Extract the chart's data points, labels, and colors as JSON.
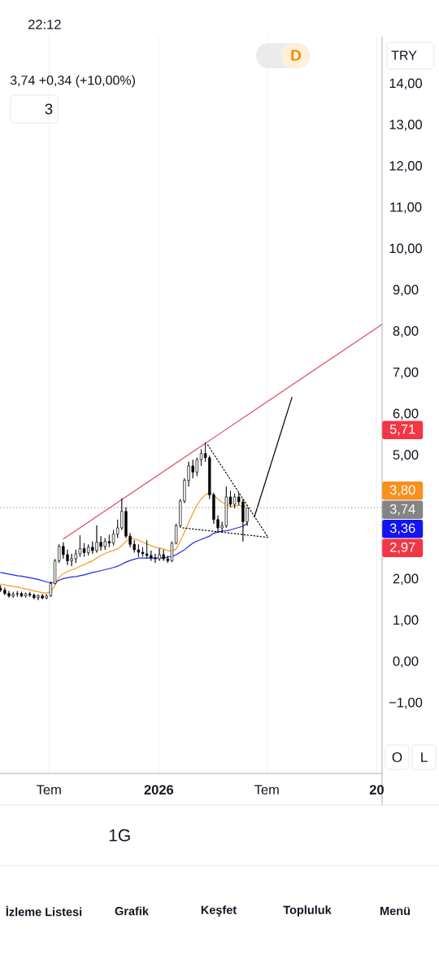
{
  "chart_data": {
    "type": "candlestick",
    "ylabel": "TRY",
    "color": "#000000",
    "x": [
      "2025-04-11",
      "2025-04-18",
      "2025-04-25",
      "2025-05-02",
      "2025-05-09",
      "2025-05-16",
      "2025-05-23",
      "2025-05-30",
      "2025-06-06",
      "2025-06-13",
      "2025-06-20",
      "2025-06-27",
      "2025-07-04",
      "2025-07-11",
      "2025-07-18",
      "2025-07-25",
      "2025-08-01",
      "2025-08-08",
      "2025-08-15",
      "2025-08-22",
      "2025-08-29",
      "2025-09-05",
      "2025-09-12",
      "2025-09-19",
      "2025-09-26",
      "2025-10-03",
      "2025-10-10",
      "2025-10-17",
      "2025-10-24",
      "2025-10-31",
      "2025-11-07",
      "2025-11-14",
      "2025-11-21",
      "2025-11-28",
      "2025-12-05",
      "2025-12-12",
      "2025-12-19",
      "2025-12-26",
      "2026-01-02",
      "2026-01-09",
      "2026-01-16",
      "2026-01-23",
      "2026-01-30",
      "2026-02-06",
      "2026-02-13",
      "2026-02-20",
      "2026-02-27",
      "2026-03-06",
      "2026-03-13",
      "2026-03-20",
      "2026-03-27",
      "2026-04-03",
      "2026-04-10",
      "2026-04-17",
      "2026-04-24",
      "2026-05-01",
      "2026-05-08",
      "2026-05-15",
      "2026-05-22",
      "2026-05-29"
    ],
    "ohlc": [
      [
        1.78,
        1.86,
        1.7,
        1.74
      ],
      [
        1.74,
        1.8,
        1.62,
        1.66
      ],
      [
        1.66,
        1.72,
        1.56,
        1.6
      ],
      [
        1.6,
        1.7,
        1.56,
        1.64
      ],
      [
        1.64,
        1.72,
        1.58,
        1.66
      ],
      [
        1.66,
        1.7,
        1.57,
        1.6
      ],
      [
        1.6,
        1.68,
        1.56,
        1.65
      ],
      [
        1.65,
        1.7,
        1.58,
        1.62
      ],
      [
        1.62,
        1.66,
        1.52,
        1.56
      ],
      [
        1.56,
        1.64,
        1.5,
        1.6
      ],
      [
        1.6,
        1.65,
        1.52,
        1.55
      ],
      [
        1.55,
        1.64,
        1.52,
        1.6
      ],
      [
        1.6,
        1.95,
        1.58,
        1.9
      ],
      [
        1.9,
        2.5,
        1.88,
        2.45
      ],
      [
        2.45,
        2.85,
        2.4,
        2.8
      ],
      [
        2.8,
        2.9,
        2.5,
        2.6
      ],
      [
        2.6,
        2.72,
        2.35,
        2.45
      ],
      [
        2.45,
        2.62,
        2.32,
        2.5
      ],
      [
        2.5,
        2.72,
        2.4,
        2.62
      ],
      [
        2.62,
        3.07,
        2.55,
        2.75
      ],
      [
        2.75,
        2.88,
        2.55,
        2.65
      ],
      [
        2.65,
        2.85,
        2.58,
        2.78
      ],
      [
        2.78,
        2.92,
        2.62,
        2.7
      ],
      [
        2.7,
        3.31,
        2.65,
        2.9
      ],
      [
        2.9,
        3.05,
        2.7,
        2.8
      ],
      [
        2.8,
        3.0,
        2.72,
        2.92
      ],
      [
        2.92,
        3.08,
        2.78,
        2.88
      ],
      [
        2.88,
        3.2,
        2.82,
        3.1
      ],
      [
        3.1,
        3.45,
        3.0,
        3.25
      ],
      [
        3.25,
        3.96,
        3.2,
        3.65
      ],
      [
        3.65,
        3.75,
        3.0,
        3.05
      ],
      [
        3.05,
        3.12,
        2.78,
        2.85
      ],
      [
        2.85,
        2.95,
        2.65,
        2.72
      ],
      [
        2.72,
        2.85,
        2.55,
        2.66
      ],
      [
        2.66,
        2.78,
        2.55,
        2.62
      ],
      [
        2.62,
        2.95,
        2.52,
        2.58
      ],
      [
        2.58,
        2.7,
        2.45,
        2.52
      ],
      [
        2.52,
        2.62,
        2.4,
        2.5
      ],
      [
        2.5,
        2.75,
        2.45,
        2.6
      ],
      [
        2.6,
        2.72,
        2.45,
        2.5
      ],
      [
        2.5,
        2.58,
        2.4,
        2.45
      ],
      [
        2.45,
        2.92,
        2.42,
        2.88
      ],
      [
        2.88,
        3.35,
        2.85,
        3.3
      ],
      [
        3.3,
        3.95,
        3.25,
        3.9
      ],
      [
        3.9,
        4.45,
        3.85,
        4.4
      ],
      [
        4.4,
        4.85,
        4.25,
        4.75
      ],
      [
        4.75,
        4.9,
        4.45,
        4.6
      ],
      [
        4.6,
        4.95,
        4.5,
        4.9
      ],
      [
        4.9,
        5.15,
        4.75,
        5.05
      ],
      [
        5.05,
        5.32,
        4.85,
        4.95
      ],
      [
        4.95,
        5.0,
        3.95,
        4.05
      ],
      [
        4.05,
        4.1,
        3.35,
        3.45
      ],
      [
        3.45,
        3.55,
        3.15,
        3.25
      ],
      [
        3.25,
        3.4,
        3.15,
        3.3
      ],
      [
        3.3,
        4.25,
        3.25,
        4.0
      ],
      [
        4.0,
        4.15,
        3.75,
        3.82
      ],
      [
        3.82,
        4.08,
        3.72,
        4.0
      ],
      [
        4.0,
        4.1,
        3.8,
        3.88
      ],
      [
        3.88,
        3.95,
        2.92,
        3.4
      ],
      [
        3.4,
        3.74,
        3.3,
        3.74
      ]
    ],
    "series": [
      {
        "type": "line",
        "color": "#f59a23",
        "values": [
          1.89,
          1.87,
          1.85,
          1.83,
          1.82,
          1.79,
          1.77,
          1.75,
          1.72,
          1.7,
          1.68,
          1.67,
          1.7,
          1.85,
          2.05,
          2.14,
          2.19,
          2.23,
          2.27,
          2.32,
          2.36,
          2.41,
          2.45,
          2.52,
          2.58,
          2.63,
          2.67,
          2.7,
          2.74,
          2.82,
          2.92,
          3.0,
          2.98,
          2.95,
          2.9,
          2.86,
          2.82,
          2.78,
          2.76,
          2.74,
          2.7,
          2.68,
          2.74,
          2.92,
          3.15,
          3.38,
          3.6,
          3.8,
          3.95,
          4.05,
          4.1,
          4.04,
          3.95,
          3.87,
          3.82,
          3.77,
          3.78,
          3.8,
          3.76,
          3.8
        ]
      },
      {
        "type": "line",
        "color": "#2424e8",
        "values": [
          2.17,
          2.15,
          2.13,
          2.11,
          2.09,
          2.08,
          2.06,
          2.04,
          2.02,
          2.0,
          1.97,
          1.94,
          1.92,
          1.93,
          1.98,
          2.02,
          2.04,
          2.06,
          2.07,
          2.09,
          2.11,
          2.14,
          2.17,
          2.19,
          2.21,
          2.24,
          2.26,
          2.29,
          2.32,
          2.37,
          2.42,
          2.46,
          2.49,
          2.52,
          2.52,
          2.52,
          2.52,
          2.52,
          2.52,
          2.52,
          2.54,
          2.56,
          2.6,
          2.66,
          2.72,
          2.8,
          2.88,
          2.93,
          2.97,
          3.01,
          3.05,
          3.12,
          3.15,
          3.17,
          3.18,
          3.2,
          3.23,
          3.26,
          3.29,
          3.36
        ]
      },
      {
        "type": "line",
        "color": "#e04b64",
        "x": [
          "2025-07-25",
          "2027-01-10"
        ],
        "values": [
          2.98,
          8.18
        ]
      },
      {
        "type": "line",
        "color": "#000000",
        "x": [
          "2026-06-10",
          "2026-08-12"
        ],
        "values": [
          3.51,
          6.41
        ]
      },
      {
        "type": "line",
        "color": "#000000",
        "line_style": "dotted",
        "x": [
          "2026-02-10",
          "2026-07-03",
          "2026-03-24"
        ],
        "values": [
          3.25,
          3.02,
          5.26
        ]
      }
    ],
    "ref_lines": [
      {
        "axis": "y",
        "value": 3.74,
        "label": "3,74",
        "color": "#848484",
        "line_style": "dotted"
      }
    ],
    "annotations": [
      "22:12",
      "3,74 +0,34 (+10,00%)",
      "3",
      "D",
      "O",
      "L",
      "1G",
      "İzleme Listesi",
      "Grafik",
      "Keşfet",
      "Topluluk",
      "Menü",
      "5,71",
      "3,80",
      "3,36",
      "2,97"
    ],
    "xlim": [
      "2025-04-10",
      "2027-01-10"
    ],
    "xticks": [
      {
        "value": "2025-07-01",
        "label": "Tem"
      },
      {
        "value": "2026-01-01",
        "label": "2026"
      },
      {
        "value": "2026-07-01",
        "label": "Tem"
      },
      {
        "value": "2027-01-01",
        "label": "20"
      }
    ],
    "ylim": [
      -2.7,
      15.15
    ],
    "yticks": [
      {
        "value": -1,
        "label": "−1,00"
      },
      {
        "value": 0,
        "label": "0,00"
      },
      {
        "value": 1,
        "label": "1,00"
      },
      {
        "value": 2,
        "label": "2,00"
      },
      {
        "value": 5,
        "label": "5,00"
      },
      {
        "value": 6,
        "label": "6,00"
      },
      {
        "value": 7,
        "label": "7,00"
      },
      {
        "value": 8,
        "label": "8,00"
      },
      {
        "value": 9,
        "label": "9,00"
      },
      {
        "value": 10,
        "label": "10,00"
      },
      {
        "value": 11,
        "label": "11,00"
      },
      {
        "value": 12,
        "label": "12,00"
      },
      {
        "value": 13,
        "label": "13,00"
      },
      {
        "value": 14,
        "label": "14,00"
      }
    ],
    "grid": "x"
  }
}
